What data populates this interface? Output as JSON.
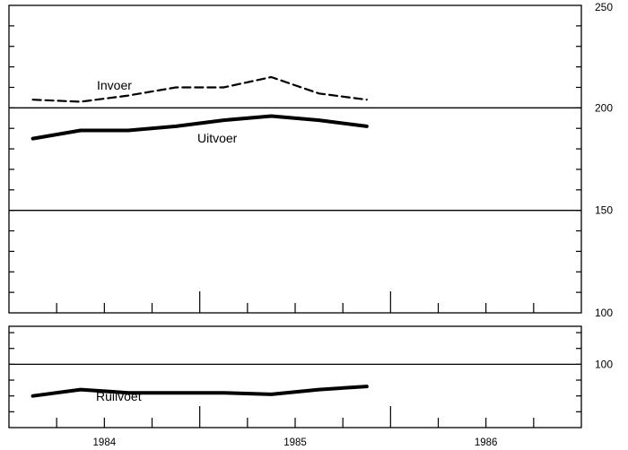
{
  "chart_data": [
    {
      "type": "line",
      "ylim": [
        100,
        250
      ],
      "xlim": [
        1983.5,
        1986.5
      ],
      "yticks": [
        "250",
        "200",
        "150",
        "100"
      ],
      "ytick_values": [
        250,
        200,
        150,
        100
      ],
      "xticks": [
        "1984",
        "1985",
        "1986"
      ],
      "x_year_dividers": [
        1984.5,
        1985.5
      ],
      "reference_lines": [
        200,
        150
      ],
      "grid": false,
      "series": [
        {
          "name": "Invoer",
          "style": "dashed",
          "x": [
            1983.625,
            1983.875,
            1984.125,
            1984.375,
            1984.625,
            1984.875,
            1985.125,
            1985.375
          ],
          "values": [
            204,
            203,
            206,
            210,
            210,
            215,
            207,
            204
          ]
        },
        {
          "name": "Uitvoer",
          "style": "solid-thick",
          "x": [
            1983.625,
            1983.875,
            1984.125,
            1984.375,
            1984.625,
            1984.875,
            1985.125,
            1985.375
          ],
          "values": [
            185,
            189,
            189,
            191,
            194,
            196,
            194,
            191
          ]
        }
      ]
    },
    {
      "type": "line",
      "ylim": [
        80,
        112
      ],
      "xlim": [
        1983.5,
        1986.5
      ],
      "yticks": [
        "100"
      ],
      "ytick_values": [
        100
      ],
      "xticks": [
        "1984",
        "1985",
        "1986"
      ],
      "reference_lines": [
        100
      ],
      "grid": false,
      "series": [
        {
          "name": "Ruilvoet",
          "style": "solid-thick",
          "x": [
            1983.625,
            1983.875,
            1984.125,
            1984.375,
            1984.625,
            1984.875,
            1985.125,
            1985.375
          ],
          "values": [
            90,
            92,
            91,
            91,
            91,
            90.5,
            92,
            93
          ]
        }
      ]
    }
  ],
  "colors": {
    "line": "#000000",
    "background": "#ffffff"
  }
}
